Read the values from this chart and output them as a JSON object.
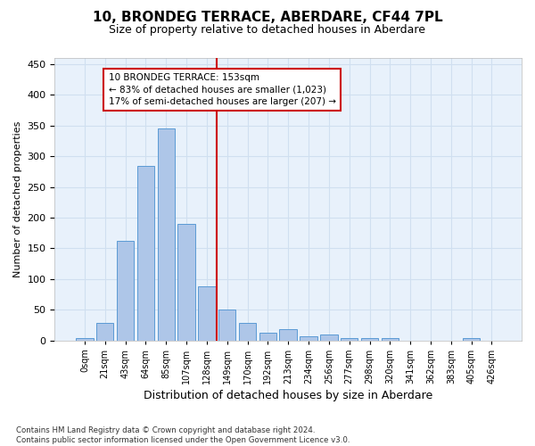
{
  "title_line1": "10, BRONDEG TERRACE, ABERDARE, CF44 7PL",
  "title_line2": "Size of property relative to detached houses in Aberdare",
  "xlabel": "Distribution of detached houses by size in Aberdare",
  "ylabel": "Number of detached properties",
  "footer_line1": "Contains HM Land Registry data © Crown copyright and database right 2024.",
  "footer_line2": "Contains public sector information licensed under the Open Government Licence v3.0.",
  "bar_labels": [
    "0sqm",
    "21sqm",
    "43sqm",
    "64sqm",
    "85sqm",
    "107sqm",
    "128sqm",
    "149sqm",
    "170sqm",
    "192sqm",
    "213sqm",
    "234sqm",
    "256sqm",
    "277sqm",
    "298sqm",
    "320sqm",
    "341sqm",
    "362sqm",
    "383sqm",
    "405sqm",
    "426sqm"
  ],
  "bar_values": [
    3,
    28,
    162,
    284,
    345,
    190,
    88,
    50,
    28,
    13,
    18,
    6,
    10,
    3,
    3,
    3,
    0,
    0,
    0,
    3,
    0
  ],
  "bar_color": "#aec6e8",
  "bar_edge_color": "#5b9bd5",
  "grid_color": "#d0dff0",
  "background_color": "#e8f1fb",
  "vline_x_index": 7,
  "vline_color": "#cc0000",
  "annotation_text": "10 BRONDEG TERRACE: 153sqm\n← 83% of detached houses are smaller (1,023)\n17% of semi-detached houses are larger (207) →",
  "ylim": [
    0,
    460
  ],
  "yticks": [
    0,
    50,
    100,
    150,
    200,
    250,
    300,
    350,
    400,
    450
  ]
}
